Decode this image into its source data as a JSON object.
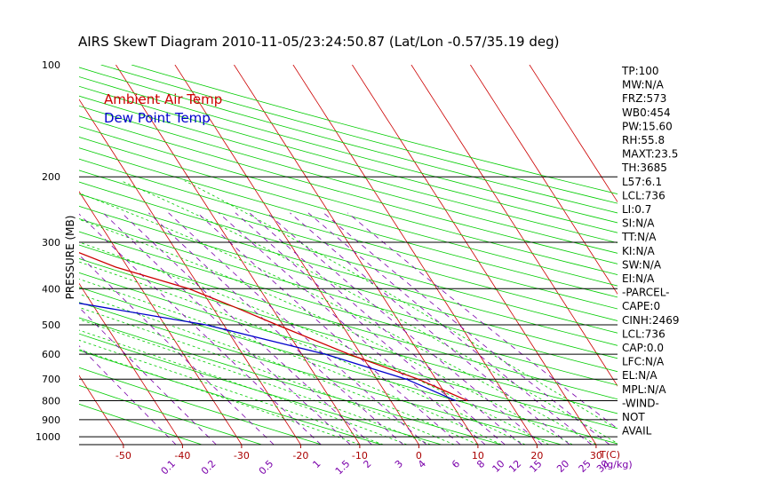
{
  "chart_data": {
    "type": "line",
    "title": "AIRS SkewT Diagram 2010-11-05/23:24:50.87 (Lat/Lon -0.57/35.19 deg)",
    "ylabel": "PRESSURE (MB)",
    "xlabel": "T(C)",
    "mixing_ratio_unit": "(g/kg)",
    "y_scale": "log",
    "ylim": [
      1050,
      100
    ],
    "xlim_bottom": [
      -53,
      40
    ],
    "top_temp_ticks": [
      -120,
      -110,
      -100,
      -90,
      -80,
      -70,
      -60,
      -50,
      -40
    ],
    "bottom_temp_ticks": [
      -50,
      -40,
      -30,
      -20,
      -10,
      0,
      10,
      20,
      30
    ],
    "pressure_ticks": [
      {
        "p": 100,
        "label": "100"
      },
      {
        "p": 200,
        "label": "200"
      },
      {
        "p": 300,
        "label": "300"
      },
      {
        "p": 400,
        "label": "400"
      },
      {
        "p": 500,
        "label": "500"
      },
      {
        "p": 600,
        "label": "600"
      },
      {
        "p": 700,
        "label": "700"
      },
      {
        "p": 800,
        "label": "800"
      },
      {
        "p": 900,
        "label": "900"
      },
      {
        "p": 1000,
        "label": "1000"
      }
    ],
    "isobar_lines": [
      200,
      300,
      400,
      500,
      600,
      700,
      800,
      900,
      1000
    ],
    "mixing_ratio_labels": [
      "0.1",
      "0.2",
      "0.5",
      "1",
      "1.5",
      "2",
      "3",
      "4",
      "6",
      "8",
      "10",
      "12",
      "15",
      "20",
      "25",
      "30",
      "40"
    ],
    "mixing_ratio_values": [
      0.1,
      0.2,
      0.5,
      1,
      1.5,
      2,
      3,
      4,
      6,
      8,
      10,
      12,
      15,
      20,
      25,
      30,
      40
    ],
    "legend": [
      {
        "label": "Ambient Air Temp",
        "color": "#cc0000"
      },
      {
        "label": "Dew Point Temp",
        "color": "#0000cc"
      }
    ],
    "series": [
      {
        "name": "Ambient Air Temp",
        "color": "#cc0000",
        "points": [
          {
            "p": 100,
            "t": -79
          },
          {
            "p": 120,
            "t": -80
          },
          {
            "p": 150,
            "t": -78
          },
          {
            "p": 175,
            "t": -72
          },
          {
            "p": 200,
            "t": -67
          },
          {
            "p": 250,
            "t": -51
          },
          {
            "p": 300,
            "t": -40
          },
          {
            "p": 350,
            "t": -32
          },
          {
            "p": 400,
            "t": -22
          },
          {
            "p": 450,
            "t": -16
          },
          {
            "p": 500,
            "t": -11
          },
          {
            "p": 600,
            "t": -2
          },
          {
            "p": 700,
            "t": 7
          },
          {
            "p": 800,
            "t": 13
          }
        ]
      },
      {
        "name": "Dew Point Temp",
        "color": "#0000cc",
        "points": [
          {
            "p": 100,
            "t": -88
          },
          {
            "p": 150,
            "t": -91
          },
          {
            "p": 200,
            "t": -83
          },
          {
            "p": 240,
            "t": -73
          },
          {
            "p": 270,
            "t": -78
          },
          {
            "p": 300,
            "t": -75
          },
          {
            "p": 400,
            "t": -55
          },
          {
            "p": 500,
            "t": -23
          },
          {
            "p": 600,
            "t": -6
          },
          {
            "p": 700,
            "t": 5
          },
          {
            "p": 800,
            "t": 11
          }
        ]
      }
    ],
    "indices": [
      "TP:100",
      "MW:N/A",
      "FRZ:573",
      "WB0:454",
      "PW:15.60",
      "RH:55.8",
      "MAXT:23.5",
      "TH:3685",
      "L57:6.1",
      "LCL:736",
      "LI:0.7",
      "SI:N/A",
      "TT:N/A",
      "KI:N/A",
      "SW:N/A",
      "EI:N/A",
      "-PARCEL-",
      "CAPE:0",
      "CINH:2469",
      "LCL:736",
      "CAP:0.0",
      "LFC:N/A",
      "EL:N/A",
      "MPL:N/A",
      "-WIND-",
      "NOT",
      "AVAIL"
    ],
    "colors": {
      "isotherm": "#cc0000",
      "dry_adiabat": "#00cc00",
      "moist_adiabat": "#00cc00",
      "mixing_ratio": "#7a00aa",
      "isobar": "#000000",
      "tick_label": "#aa0000",
      "pressure_label": "#000000"
    }
  }
}
